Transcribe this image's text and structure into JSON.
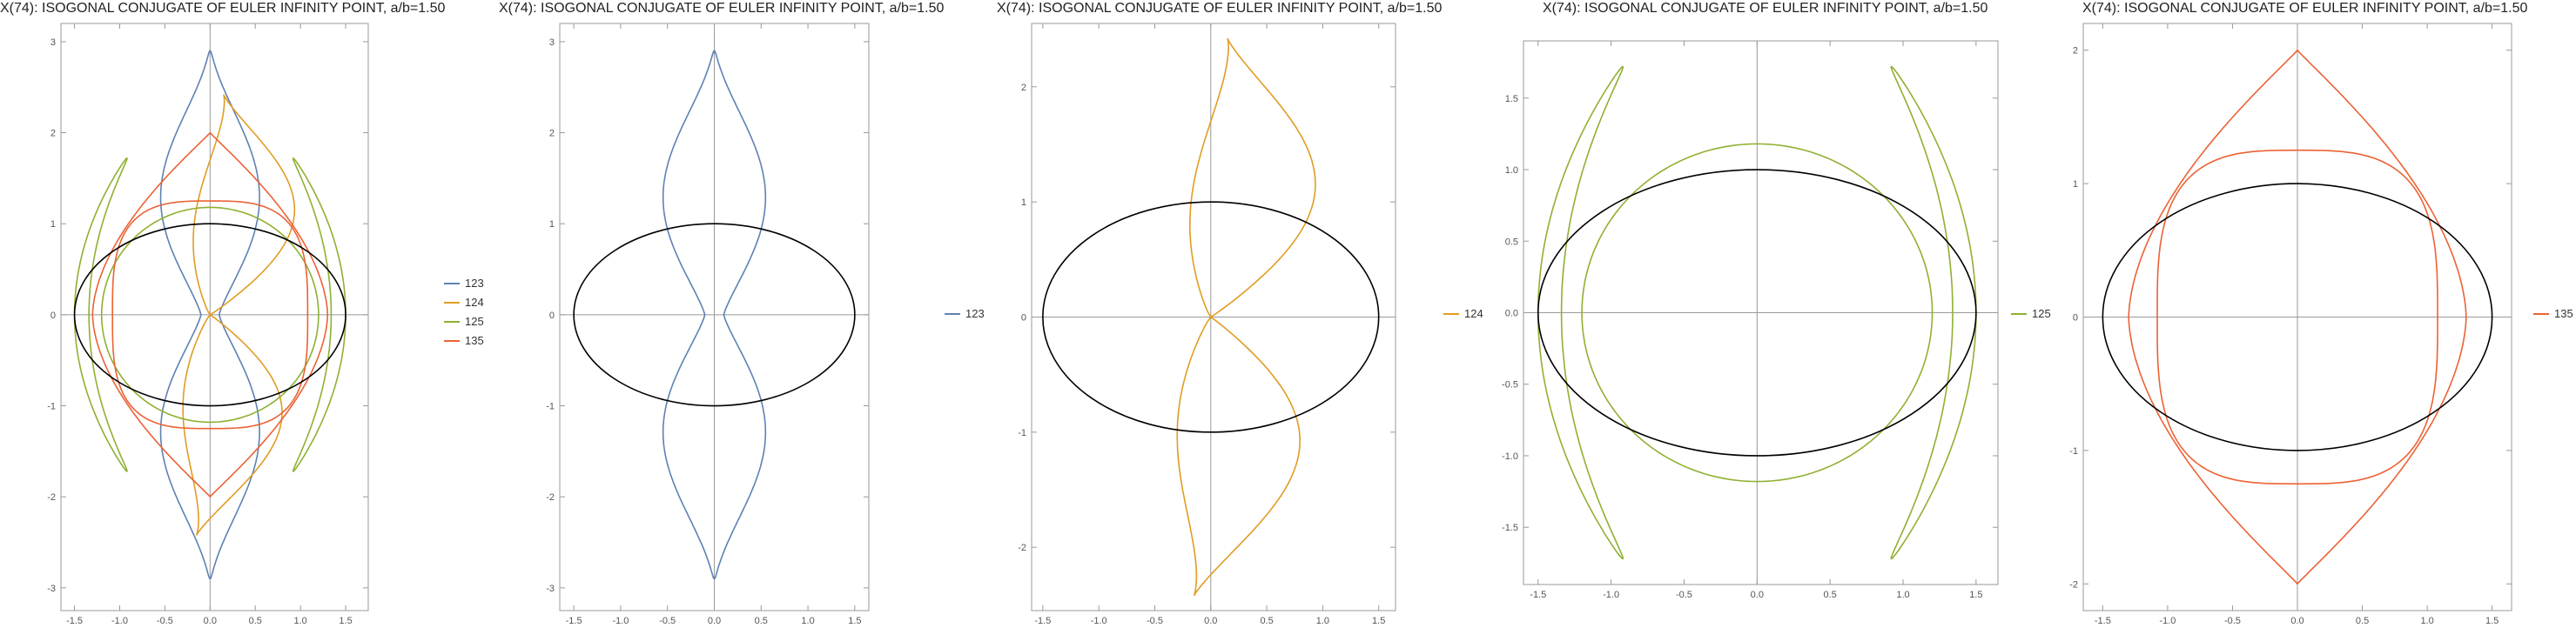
{
  "chart_data": [
    {
      "type": "line",
      "title": "X(74): ISOGONAL CONJUGATE OF EULER INFINITY POINT, a/b=1.50",
      "xlim": [
        -1.65,
        1.75
      ],
      "ylim": [
        -3.25,
        3.2
      ],
      "xticks": [
        -1.5,
        -1.0,
        -0.5,
        0,
        0.5,
        1.0,
        1.5
      ],
      "xtick_labels": [
        "-1.5",
        "-1.0",
        "-0.5",
        "0.0",
        "0.5",
        "1.0",
        "1.5"
      ],
      "yticks": [
        -3,
        -2,
        -1,
        0,
        1,
        2,
        3
      ],
      "ytick_labels": [
        "-3",
        "-2",
        "-1",
        "0",
        "1",
        "2",
        "3"
      ],
      "grid": false,
      "legend_position": "right",
      "legend": [
        "123",
        "124",
        "125",
        "135"
      ],
      "series": [
        "123",
        "124",
        "125",
        "135"
      ],
      "ellipse": {
        "a": 1.5,
        "b": 1.0
      }
    },
    {
      "type": "line",
      "title": "X(74): ISOGONAL CONJUGATE OF EULER INFINITY POINT, a/b=1.50",
      "xlim": [
        -1.65,
        1.65
      ],
      "ylim": [
        -3.25,
        3.2
      ],
      "xticks": [
        -1.5,
        -1.0,
        -0.5,
        0,
        0.5,
        1.0,
        1.5
      ],
      "xtick_labels": [
        "-1.5",
        "-1.0",
        "-0.5",
        "0.0",
        "0.5",
        "1.0",
        "1.5"
      ],
      "yticks": [
        -3,
        -2,
        -1,
        0,
        1,
        2,
        3
      ],
      "ytick_labels": [
        "-3",
        "-2",
        "-1",
        "0",
        "1",
        "2",
        "3"
      ],
      "grid": false,
      "legend_position": "right",
      "legend": [
        "123"
      ],
      "series": [
        "123"
      ],
      "ellipse": {
        "a": 1.5,
        "b": 1.0
      }
    },
    {
      "type": "line",
      "title": "X(74): ISOGONAL CONJUGATE OF EULER INFINITY POINT, a/b=1.50",
      "xlim": [
        -1.6,
        1.65
      ],
      "ylim": [
        -2.55,
        2.55
      ],
      "xticks": [
        -1.5,
        -1.0,
        -0.5,
        0,
        0.5,
        1.0,
        1.5
      ],
      "xtick_labels": [
        "-1.5",
        "-1.0",
        "-0.5",
        "0.0",
        "0.5",
        "1.0",
        "1.5"
      ],
      "yticks": [
        -2,
        -1,
        0,
        1,
        2
      ],
      "ytick_labels": [
        "-2",
        "-1",
        "0",
        "1",
        "2"
      ],
      "grid": false,
      "legend_position": "right",
      "legend": [
        "124"
      ],
      "series": [
        "124"
      ],
      "ellipse": {
        "a": 1.5,
        "b": 1.0
      }
    },
    {
      "type": "line",
      "title": "X(74): ISOGONAL CONJUGATE OF EULER INFINITY POINT, a/b=1.50",
      "xlim": [
        -1.6,
        1.65
      ],
      "ylim": [
        -1.9,
        1.9
      ],
      "xticks": [
        -1.5,
        -1.0,
        -0.5,
        0,
        0.5,
        1.0,
        1.5
      ],
      "xtick_labels": [
        "-1.5",
        "-1.0",
        "-0.5",
        "0.0",
        "0.5",
        "1.0",
        "1.5"
      ],
      "yticks": [
        -1.5,
        -1.0,
        -0.5,
        0,
        0.5,
        1.0,
        1.5
      ],
      "ytick_labels": [
        "-1.5",
        "-1.0",
        "-0.5",
        "0.0",
        "0.5",
        "1.0",
        "1.5"
      ],
      "grid": false,
      "legend_position": "right",
      "legend": [
        "125"
      ],
      "series": [
        "125"
      ],
      "ellipse": {
        "a": 1.5,
        "b": 1.0
      }
    },
    {
      "type": "line",
      "title": "X(74): ISOGONAL CONJUGATE OF EULER INFINITY POINT, a/b=1.50",
      "xlim": [
        -1.65,
        1.65
      ],
      "ylim": [
        -2.2,
        2.2
      ],
      "xticks": [
        -1.5,
        -1.0,
        -0.5,
        0,
        0.5,
        1.0,
        1.5
      ],
      "xtick_labels": [
        "-1.5",
        "-1.0",
        "-0.5",
        "0.0",
        "0.5",
        "1.0",
        "1.5"
      ],
      "yticks": [
        -2,
        -1,
        0,
        1,
        2
      ],
      "ytick_labels": [
        "-2",
        "-1",
        "0",
        "1",
        "2"
      ],
      "grid": false,
      "legend_position": "right",
      "legend": [
        "135"
      ],
      "series": [
        "135"
      ],
      "ellipse": {
        "a": 1.5,
        "b": 1.0
      }
    }
  ],
  "series_colors": {
    "123": "#5e81b5",
    "124": "#e19c24",
    "125": "#8fb032",
    "135": "#eb6235",
    "ellipse": "#000000"
  }
}
